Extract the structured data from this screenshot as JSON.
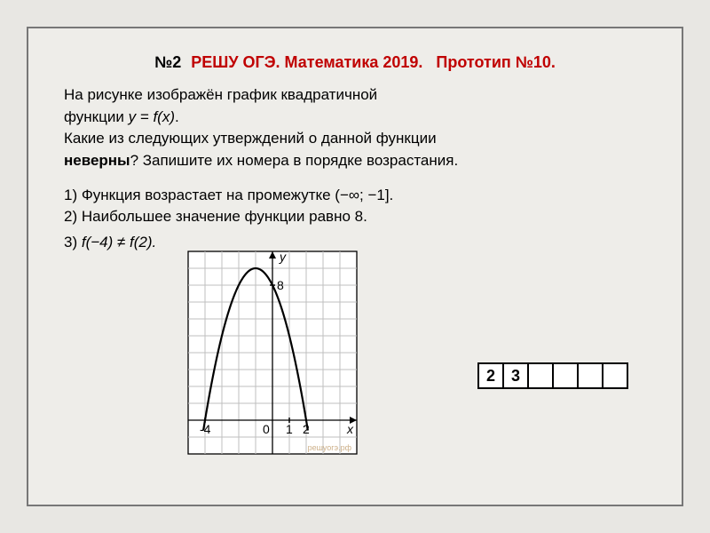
{
  "header": {
    "number": "№2",
    "site": "РЕШУ ОГЭ.",
    "subject": "Математика 2019.",
    "proto": "Прототип №10."
  },
  "problem": {
    "line1a": "На рисунке изображён график квадратичной",
    "line1b": "функции ",
    "func_eq": "y = f(x)",
    "line1c": ".",
    "line2": "Какие из следующих утверждений о данной функции",
    "bold_word": "неверны",
    "line3": "? Запишите их номера в порядке возрастания.",
    "opt1": "1) Функция возрастает на промежутке (−∞;  −1].",
    "opt2": "2) Наибольшее значение функции равно 8.",
    "opt3_a": "3) ",
    "opt3_b": "f(−4) ≠ f(2)."
  },
  "chart": {
    "type": "parabola",
    "grid": {
      "cols": 10,
      "rows": 12,
      "cell": 19
    },
    "origin_col": 5,
    "origin_row": 10,
    "axis_labels": {
      "x": "x",
      "y": "y",
      "eight": "8",
      "zero": "0",
      "one": "1",
      "two": "2",
      "neg4": "-4"
    },
    "x_ticks": [
      -4,
      0,
      1,
      2
    ],
    "y_ticks": [
      8
    ],
    "parabola": {
      "vertex_x": -1,
      "vertex_y": 9,
      "a": -1,
      "x_range": [
        -4.1,
        2.1
      ]
    },
    "colors": {
      "bg": "#ffffff",
      "grid": "#bfbfbf",
      "axis": "#000000",
      "curve": "#000000",
      "text": "#000000"
    },
    "stroke": {
      "grid": 1,
      "axis": 1.3,
      "curve": 2.2
    },
    "watermark": "решуогэ.рф"
  },
  "answer": {
    "cells": [
      "2",
      "3",
      "",
      "",
      "",
      ""
    ]
  }
}
